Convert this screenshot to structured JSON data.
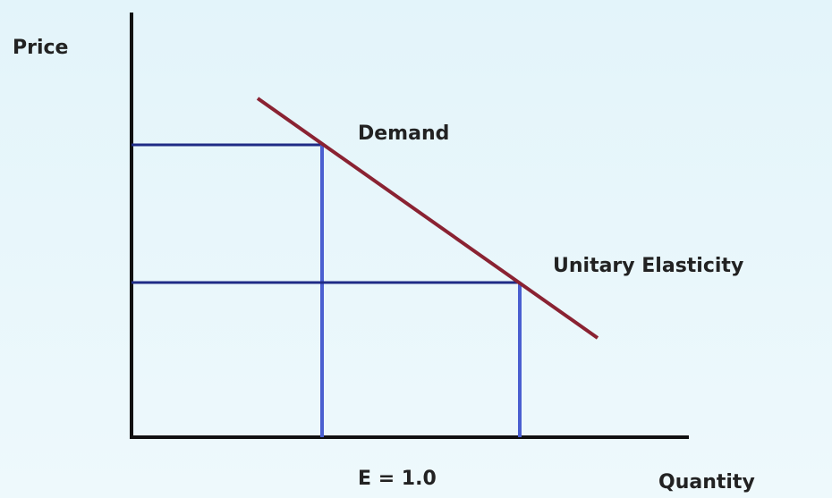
{
  "axes": {
    "y_label": "Price",
    "x_label": "Quantity"
  },
  "curve": {
    "label": "Demand"
  },
  "annotations": {
    "point": "Unitary Elasticity",
    "elasticity": "E = 1.0"
  }
}
